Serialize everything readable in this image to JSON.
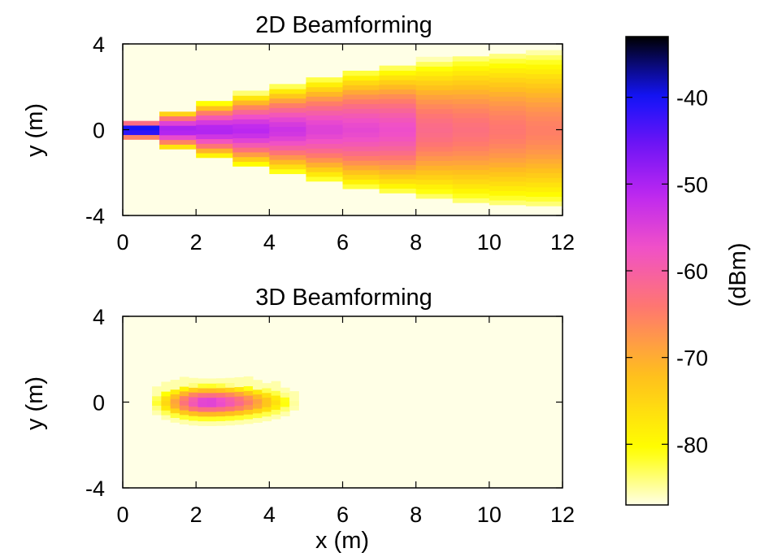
{
  "chart_data": [
    {
      "type": "heatmap",
      "title": "2D Beamforming",
      "xlabel": "",
      "ylabel": "y (m)",
      "xlim": [
        0,
        12
      ],
      "ylim": [
        -4,
        4
      ],
      "xticks": [
        "0",
        "2",
        "4",
        "6",
        "8",
        "10",
        "12"
      ],
      "yticks": [
        "-4",
        "0",
        "4"
      ],
      "grid": false,
      "beam": {
        "x_start": 0,
        "x_end": 12,
        "columns": [
          {
            "x0": 0.0,
            "x1": 1.0,
            "half_width": 0.45,
            "core": -36
          },
          {
            "x0": 1.0,
            "x1": 2.0,
            "half_width": 0.9,
            "core": -49
          },
          {
            "x0": 2.0,
            "x1": 3.0,
            "half_width": 1.3,
            "core": -50
          },
          {
            "x0": 3.0,
            "x1": 4.0,
            "half_width": 1.7,
            "core": -51
          },
          {
            "x0": 4.0,
            "x1": 5.0,
            "half_width": 2.05,
            "core": -53
          },
          {
            "x0": 5.0,
            "x1": 6.0,
            "half_width": 2.4,
            "core": -55
          },
          {
            "x0": 6.0,
            "x1": 7.0,
            "half_width": 2.75,
            "core": -56
          },
          {
            "x0": 7.0,
            "x1": 8.0,
            "half_width": 2.95,
            "core": -57
          },
          {
            "x0": 8.0,
            "x1": 9.0,
            "half_width": 3.2,
            "core": -62
          },
          {
            "x0": 9.0,
            "x1": 10.0,
            "half_width": 3.4,
            "core": -63
          },
          {
            "x0": 10.0,
            "x1": 11.0,
            "half_width": 3.5,
            "core": -64
          },
          {
            "x0": 11.0,
            "x1": 12.0,
            "half_width": 3.55,
            "core": -65
          }
        ],
        "background": -87
      }
    },
    {
      "type": "heatmap",
      "title": "3D Beamforming",
      "xlabel": "x (m)",
      "ylabel": "y (m)",
      "xlim": [
        0,
        12
      ],
      "ylim": [
        -4,
        4
      ],
      "xticks": [
        "0",
        "2",
        "4",
        "6",
        "8",
        "10",
        "12"
      ],
      "yticks": [
        "-4",
        "0",
        "4"
      ],
      "grid": false,
      "spot": {
        "center_x": 2.3,
        "center_y": 0,
        "peak": -53,
        "x_extent": [
          0.8,
          4.7
        ],
        "y_half_width": 0.85
      },
      "background": -87
    }
  ],
  "colorbar": {
    "label": "(dBm)",
    "range": [
      -87,
      -33
    ],
    "ticks": [
      "-40",
      "-50",
      "-60",
      "-70",
      "-80"
    ],
    "tick_values": [
      -40,
      -50,
      -60,
      -70,
      -80
    ]
  }
}
